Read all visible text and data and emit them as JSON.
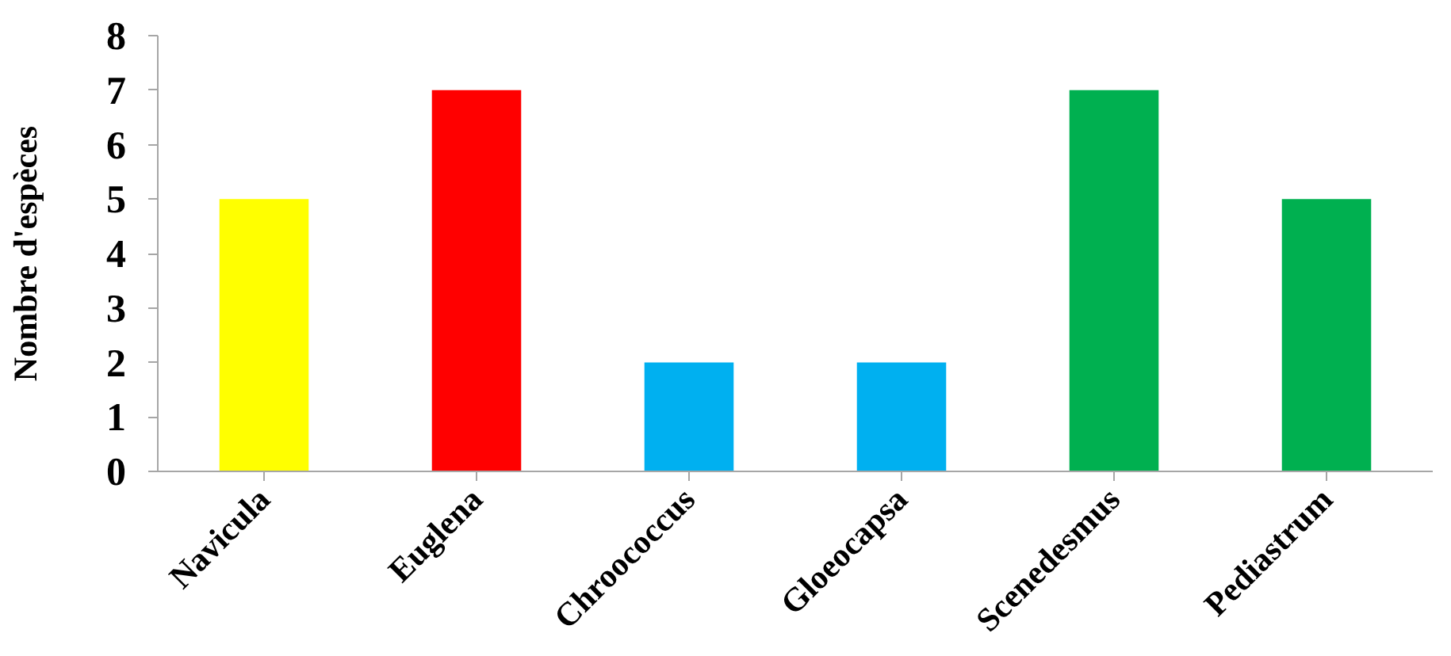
{
  "chart_data": {
    "type": "bar",
    "ylabel": "Nombre d'espèces",
    "categories": [
      "Navicula",
      "Euglena",
      "Chroococcus",
      "Gloeocapsa",
      "Scenedesmus",
      "Pediastrum"
    ],
    "values": [
      5,
      7,
      2,
      2,
      7,
      5
    ],
    "colors": [
      "#ffff00",
      "#ff0000",
      "#00b0f0",
      "#00b0f0",
      "#00b050",
      "#00b050"
    ],
    "ylim": [
      0,
      8
    ],
    "yticks": [
      0,
      1,
      2,
      3,
      4,
      5,
      6,
      7,
      8
    ]
  }
}
